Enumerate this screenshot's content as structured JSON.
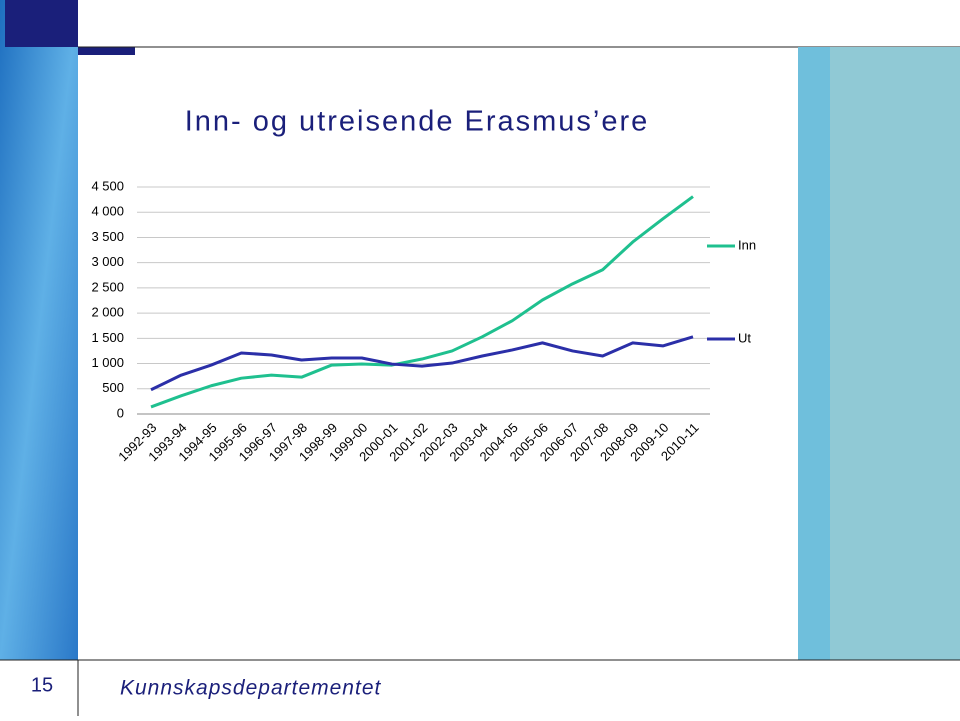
{
  "slide": {
    "number": "15",
    "footer": "Kunnskapsdepartementet"
  },
  "chart_data": {
    "type": "line",
    "title": "Inn- og utreisende Erasmus’ere",
    "categories": [
      "1992-93",
      "1993-94",
      "1994-95",
      "1995-96",
      "1996-97",
      "1997-98",
      "1998-99",
      "1999-00",
      "2000-01",
      "2001-02",
      "2002-03",
      "2003-04",
      "2004-05",
      "2005-06",
      "2006-07",
      "2007-08",
      "2008-09",
      "2009-10",
      "2010-11"
    ],
    "series": [
      {
        "name": "Inn",
        "color": "#1fc08f",
        "values": [
          140,
          360,
          560,
          710,
          770,
          730,
          970,
          990,
          970,
          1090,
          1250,
          1530,
          1850,
          2260,
          2580,
          2860,
          3410,
          3870,
          4310
        ]
      },
      {
        "name": "Ut",
        "color": "#2b2fa8",
        "values": [
          480,
          770,
          970,
          1210,
          1170,
          1070,
          1110,
          1110,
          990,
          950,
          1010,
          1150,
          1270,
          1410,
          1250,
          1150,
          1410,
          1350,
          1530
        ]
      }
    ],
    "ylim": [
      0,
      4500
    ],
    "yticks": [
      0,
      500,
      {
        "value": 1000,
        "label": "1 000"
      },
      {
        "value": 1500,
        "label": "1 500"
      },
      {
        "value": 2000,
        "label": "2 000"
      },
      {
        "value": 2500,
        "label": "2 500"
      },
      {
        "value": 3000,
        "label": "3 000"
      },
      {
        "value": 3500,
        "label": "3 500"
      },
      {
        "value": 4000,
        "label": "4 000"
      },
      {
        "value": 4500,
        "label": "4 500"
      }
    ],
    "grid": true,
    "legend": "right"
  }
}
